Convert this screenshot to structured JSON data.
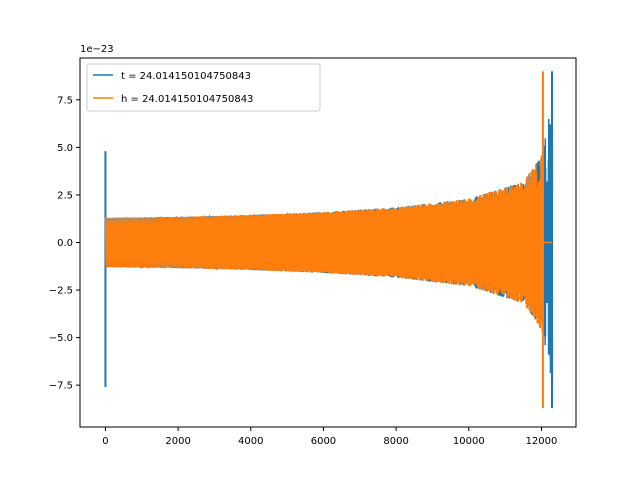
{
  "chart_data": {
    "type": "line",
    "title": "",
    "xlabel": "",
    "ylabel": "",
    "y_offset_label": "1e−23",
    "xlim": [
      -700,
      12950
    ],
    "ylim": [
      -9.7,
      9.7
    ],
    "x_ticks": [
      0,
      2000,
      4000,
      6000,
      8000,
      10000,
      12000
    ],
    "x_tick_labels": [
      "0",
      "2000",
      "4000",
      "6000",
      "8000",
      "10000",
      "12000"
    ],
    "y_ticks": [
      -7.5,
      -5.0,
      -2.5,
      0.0,
      2.5,
      5.0,
      7.5
    ],
    "y_tick_labels": [
      "−7.5",
      "−5.0",
      "−2.5",
      "0.0",
      "2.5",
      "5.0",
      "7.5"
    ],
    "grid": false,
    "legend_position": "top-left",
    "series": [
      {
        "name": "t = 24.014150104750843",
        "color": "#1f77b4",
        "x_start": 0,
        "x_end": 12290,
        "envelope_points": [
          [
            0,
            1.3
          ],
          [
            2000,
            1.35
          ],
          [
            4000,
            1.45
          ],
          [
            6000,
            1.6
          ],
          [
            8000,
            1.85
          ],
          [
            10000,
            2.3
          ],
          [
            11500,
            3.2
          ],
          [
            12000,
            4.5
          ],
          [
            12200,
            6.5
          ],
          [
            12290,
            7.4
          ]
        ],
        "spike_start": [
          0,
          4.8,
          -7.6
        ],
        "spike_end": [
          12290,
          9.0,
          -8.7
        ]
      },
      {
        "name": "h = 24.014150104750843",
        "color": "#ff7f0e",
        "x_start": 0,
        "x_end": 12290,
        "envelope_points": [
          [
            0,
            1.3
          ],
          [
            2000,
            1.35
          ],
          [
            4000,
            1.45
          ],
          [
            6000,
            1.6
          ],
          [
            8000,
            1.85
          ],
          [
            10000,
            2.3
          ],
          [
            11500,
            3.2
          ],
          [
            11900,
            4.3
          ],
          [
            12000,
            4.7
          ]
        ],
        "spike_end": [
          12040,
          9.0,
          -8.7
        ],
        "flat_after": [
          12040,
          12290,
          0.0
        ]
      }
    ]
  }
}
